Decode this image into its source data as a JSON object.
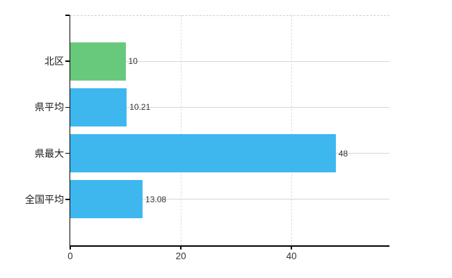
{
  "chart_data": {
    "type": "bar",
    "orientation": "horizontal",
    "title": "",
    "xlabel": "",
    "ylabel": "",
    "categories": [
      "北区",
      "県平均",
      "県最大",
      "全国平均"
    ],
    "values": [
      10,
      10.21,
      48,
      13.08
    ],
    "value_labels": [
      "10",
      "10.21",
      "48",
      "13.08"
    ],
    "bar_colors": [
      "#68c97c",
      "#3eb7ef",
      "#3eb7ef",
      "#3eb7ef"
    ],
    "default_bar_color": "#3eb7ef",
    "highlight_bar_color": "#68c97c",
    "xlim": [
      0,
      57.7
    ],
    "x_ticks": [
      0,
      20,
      40
    ],
    "x_tick_labels": [
      "0",
      "20",
      "40"
    ],
    "grid": true,
    "legend": false
  },
  "style_colors": {
    "background": "#ffffff",
    "axis": "#000000",
    "horizontal_gridline": "#d3d8cf",
    "vertical_gridline": "#dcdcdc",
    "plot_top_border": "#cccccc",
    "value_label_text": "#333333",
    "tick_label_text": "#333333",
    "category_label_text": "#1a1a1a"
  }
}
